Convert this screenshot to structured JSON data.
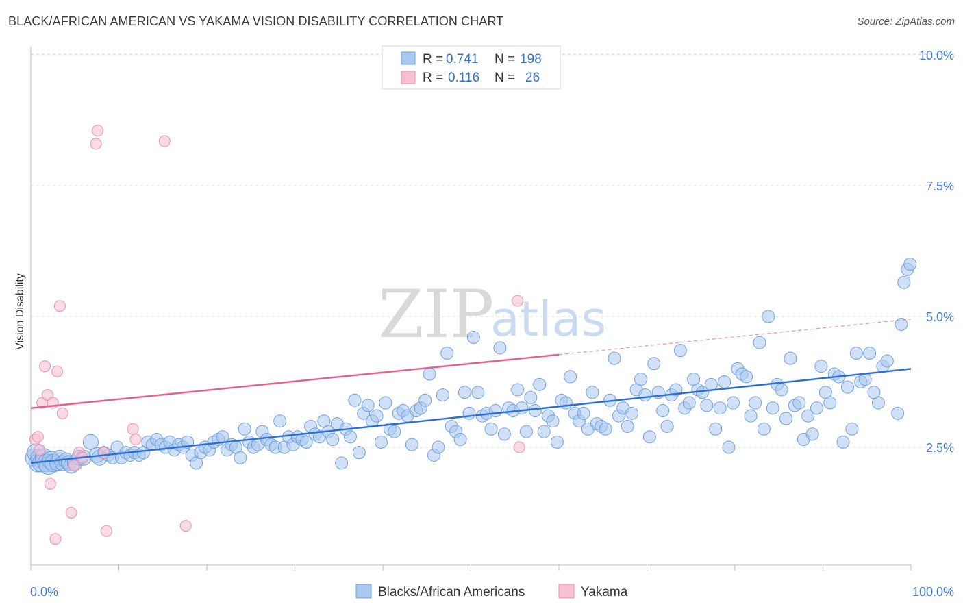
{
  "header": {
    "title": "BLACK/AFRICAN AMERICAN VS YAKAMA VISION DISABILITY CORRELATION CHART",
    "source": "Source: ZipAtlas.com"
  },
  "watermark": {
    "zip": "ZIP",
    "atlas": "atlas"
  },
  "colors": {
    "blue_fill": "#a9c8f0",
    "blue_stroke": "#6e9fe0",
    "blue_line": "#2f6fd1",
    "pink_fill": "#f6c2d3",
    "pink_stroke": "#ea8fae",
    "pink_line": "#e3628e",
    "axis_text": "#3f7bd0",
    "grid": "#dddddd"
  },
  "legend": {
    "rows": [
      {
        "r_label": "R =",
        "r_value": "0.741",
        "n_label": "N =",
        "n_value": "198"
      },
      {
        "r_label": "R =",
        "r_value": "0.116",
        "n_label": "N =",
        "n_value": "26"
      }
    ]
  },
  "bottom_legend": {
    "items": [
      {
        "label": "Blacks/African Americans"
      },
      {
        "label": "Yakama"
      }
    ]
  },
  "chart_data": {
    "type": "scatter",
    "ylabel": "Vision Disability",
    "xlabel": "",
    "xlim": [
      0,
      100
    ],
    "ylim": [
      0,
      10.5
    ],
    "x_tick_labels": [
      "0.0%",
      "100.0%"
    ],
    "y_ticks": [
      2.5,
      5.0,
      7.5,
      10.0
    ],
    "y_tick_labels": [
      "2.5%",
      "5.0%",
      "7.5%",
      "10.0%"
    ],
    "grid": "horizontal dashed",
    "series": [
      {
        "name": "Blacks/African Americans",
        "r": 0.741,
        "n": 198,
        "trend": {
          "x": [
            0,
            100
          ],
          "y": [
            2.2,
            4.0
          ],
          "dashed_after": null
        },
        "points": [
          [
            0.4,
            2.3
          ],
          [
            0.6,
            2.4
          ],
          [
            0.8,
            2.2
          ],
          [
            1.0,
            2.3
          ],
          [
            1.2,
            2.2
          ],
          [
            1.5,
            2.3
          ],
          [
            1.8,
            2.2
          ],
          [
            2.0,
            2.15
          ],
          [
            2.3,
            2.25
          ],
          [
            2.6,
            2.2
          ],
          [
            3.0,
            2.2
          ],
          [
            3.3,
            2.3
          ],
          [
            3.6,
            2.2
          ],
          [
            4.0,
            2.25
          ],
          [
            4.3,
            2.2
          ],
          [
            4.6,
            2.15
          ],
          [
            5.0,
            2.2
          ],
          [
            5.5,
            2.3
          ],
          [
            6.0,
            2.3
          ],
          [
            6.8,
            2.6
          ],
          [
            7.5,
            2.35
          ],
          [
            7.8,
            2.3
          ],
          [
            8.3,
            2.4
          ],
          [
            8.8,
            2.35
          ],
          [
            9.3,
            2.3
          ],
          [
            9.8,
            2.5
          ],
          [
            10.3,
            2.3
          ],
          [
            10.8,
            2.4
          ],
          [
            11.3,
            2.35
          ],
          [
            11.8,
            2.4
          ],
          [
            12.3,
            2.35
          ],
          [
            12.8,
            2.4
          ],
          [
            13.3,
            2.6
          ],
          [
            13.8,
            2.55
          ],
          [
            14.3,
            2.65
          ],
          [
            14.8,
            2.55
          ],
          [
            15.3,
            2.5
          ],
          [
            15.8,
            2.6
          ],
          [
            16.3,
            2.45
          ],
          [
            16.8,
            2.55
          ],
          [
            17.3,
            2.5
          ],
          [
            17.8,
            2.6
          ],
          [
            18.3,
            2.35
          ],
          [
            18.8,
            2.2
          ],
          [
            19.3,
            2.4
          ],
          [
            19.8,
            2.5
          ],
          [
            20.3,
            2.45
          ],
          [
            20.8,
            2.6
          ],
          [
            21.3,
            2.65
          ],
          [
            21.8,
            2.7
          ],
          [
            22.3,
            2.45
          ],
          [
            22.8,
            2.55
          ],
          [
            23.3,
            2.5
          ],
          [
            23.8,
            2.3
          ],
          [
            24.3,
            2.85
          ],
          [
            24.8,
            2.6
          ],
          [
            25.3,
            2.5
          ],
          [
            25.8,
            2.55
          ],
          [
            26.3,
            2.8
          ],
          [
            26.8,
            2.65
          ],
          [
            27.3,
            2.55
          ],
          [
            27.8,
            2.5
          ],
          [
            28.3,
            3.0
          ],
          [
            28.8,
            2.5
          ],
          [
            29.3,
            2.7
          ],
          [
            29.8,
            2.55
          ],
          [
            30.3,
            2.7
          ],
          [
            30.8,
            2.65
          ],
          [
            31.3,
            2.6
          ],
          [
            31.8,
            2.9
          ],
          [
            32.3,
            2.75
          ],
          [
            32.8,
            2.7
          ],
          [
            33.3,
            3.0
          ],
          [
            33.8,
            2.8
          ],
          [
            34.3,
            2.65
          ],
          [
            34.8,
            2.95
          ],
          [
            35.3,
            2.2
          ],
          [
            35.8,
            2.85
          ],
          [
            36.3,
            2.7
          ],
          [
            36.8,
            3.4
          ],
          [
            37.3,
            2.4
          ],
          [
            37.8,
            3.15
          ],
          [
            38.3,
            3.3
          ],
          [
            38.8,
            3.0
          ],
          [
            39.3,
            3.1
          ],
          [
            39.8,
            2.6
          ],
          [
            40.3,
            3.35
          ],
          [
            40.8,
            2.85
          ],
          [
            41.3,
            2.8
          ],
          [
            41.8,
            3.15
          ],
          [
            42.3,
            3.2
          ],
          [
            42.8,
            3.1
          ],
          [
            43.3,
            2.55
          ],
          [
            43.8,
            3.2
          ],
          [
            44.3,
            3.25
          ],
          [
            44.8,
            3.4
          ],
          [
            45.3,
            3.9
          ],
          [
            45.8,
            2.35
          ],
          [
            46.3,
            2.5
          ],
          [
            46.8,
            3.5
          ],
          [
            47.3,
            4.3
          ],
          [
            47.8,
            2.9
          ],
          [
            48.3,
            2.8
          ],
          [
            48.8,
            2.65
          ],
          [
            49.3,
            3.55
          ],
          [
            49.8,
            3.15
          ],
          [
            50.3,
            4.6
          ],
          [
            50.8,
            3.55
          ],
          [
            51.3,
            3.1
          ],
          [
            51.8,
            3.15
          ],
          [
            52.3,
            2.85
          ],
          [
            52.8,
            3.2
          ],
          [
            53.3,
            4.4
          ],
          [
            53.8,
            2.75
          ],
          [
            54.3,
            3.25
          ],
          [
            54.8,
            3.2
          ],
          [
            55.3,
            3.6
          ],
          [
            55.8,
            3.25
          ],
          [
            56.3,
            2.8
          ],
          [
            56.8,
            3.45
          ],
          [
            57.3,
            3.2
          ],
          [
            57.8,
            3.7
          ],
          [
            58.3,
            2.8
          ],
          [
            58.8,
            3.1
          ],
          [
            59.3,
            3.0
          ],
          [
            59.8,
            2.6
          ],
          [
            60.3,
            3.4
          ],
          [
            60.8,
            3.35
          ],
          [
            61.3,
            3.85
          ],
          [
            61.8,
            3.15
          ],
          [
            62.3,
            3.0
          ],
          [
            62.8,
            3.15
          ],
          [
            63.3,
            2.85
          ],
          [
            63.8,
            3.55
          ],
          [
            64.3,
            2.95
          ],
          [
            64.8,
            2.9
          ],
          [
            65.3,
            2.85
          ],
          [
            65.8,
            3.4
          ],
          [
            66.3,
            4.2
          ],
          [
            66.8,
            3.1
          ],
          [
            67.3,
            3.25
          ],
          [
            67.8,
            2.9
          ],
          [
            68.3,
            3.15
          ],
          [
            68.8,
            3.6
          ],
          [
            69.3,
            3.8
          ],
          [
            69.8,
            3.5
          ],
          [
            70.3,
            2.7
          ],
          [
            70.8,
            4.1
          ],
          [
            71.3,
            3.55
          ],
          [
            71.8,
            3.2
          ],
          [
            72.3,
            2.9
          ],
          [
            72.8,
            3.5
          ],
          [
            73.3,
            3.6
          ],
          [
            73.8,
            4.35
          ],
          [
            74.3,
            3.25
          ],
          [
            74.8,
            3.35
          ],
          [
            75.3,
            3.8
          ],
          [
            75.8,
            3.6
          ],
          [
            76.3,
            3.55
          ],
          [
            76.8,
            3.3
          ],
          [
            77.3,
            3.7
          ],
          [
            77.8,
            2.85
          ],
          [
            78.3,
            3.25
          ],
          [
            78.8,
            3.75
          ],
          [
            79.3,
            2.5
          ],
          [
            79.8,
            3.35
          ],
          [
            80.3,
            4.0
          ],
          [
            80.8,
            3.9
          ],
          [
            81.3,
            3.85
          ],
          [
            81.8,
            3.1
          ],
          [
            82.3,
            3.35
          ],
          [
            82.8,
            4.5
          ],
          [
            83.3,
            2.85
          ],
          [
            83.8,
            5.0
          ],
          [
            84.3,
            3.25
          ],
          [
            84.8,
            3.7
          ],
          [
            85.3,
            3.6
          ],
          [
            85.8,
            3.05
          ],
          [
            86.3,
            4.2
          ],
          [
            86.8,
            3.3
          ],
          [
            87.3,
            3.35
          ],
          [
            87.8,
            2.65
          ],
          [
            88.3,
            3.1
          ],
          [
            88.8,
            2.75
          ],
          [
            89.3,
            3.25
          ],
          [
            89.8,
            4.05
          ],
          [
            90.3,
            3.55
          ],
          [
            90.8,
            3.35
          ],
          [
            91.3,
            3.9
          ],
          [
            91.8,
            3.85
          ],
          [
            92.3,
            2.6
          ],
          [
            92.8,
            3.65
          ],
          [
            93.3,
            2.85
          ],
          [
            93.8,
            4.3
          ],
          [
            94.3,
            3.75
          ],
          [
            94.8,
            3.8
          ],
          [
            95.3,
            4.3
          ],
          [
            95.8,
            3.55
          ],
          [
            96.3,
            3.35
          ],
          [
            96.8,
            4.05
          ],
          [
            97.3,
            4.15
          ],
          [
            98.5,
            3.15
          ],
          [
            98.9,
            4.85
          ],
          [
            99.2,
            5.65
          ],
          [
            99.6,
            5.9
          ],
          [
            99.9,
            6.0
          ]
        ]
      },
      {
        "name": "Yakama",
        "r": 0.116,
        "n": 26,
        "trend": {
          "x": [
            0,
            100
          ],
          "y": [
            3.25,
            4.95
          ],
          "dashed_after": 60
        },
        "points": [
          [
            0.5,
            2.65
          ],
          [
            0.8,
            2.7
          ],
          [
            1.0,
            2.45
          ],
          [
            1.3,
            3.35
          ],
          [
            1.6,
            4.05
          ],
          [
            1.9,
            3.5
          ],
          [
            2.2,
            1.8
          ],
          [
            2.5,
            3.35
          ],
          [
            2.8,
            0.75
          ],
          [
            3.0,
            3.95
          ],
          [
            3.3,
            5.2
          ],
          [
            3.6,
            3.15
          ],
          [
            4.6,
            1.25
          ],
          [
            4.9,
            2.15
          ],
          [
            5.5,
            2.4
          ],
          [
            5.9,
            2.3
          ],
          [
            7.4,
            8.3
          ],
          [
            7.6,
            8.55
          ],
          [
            8.3,
            2.4
          ],
          [
            8.6,
            0.9
          ],
          [
            11.6,
            2.85
          ],
          [
            11.9,
            2.65
          ],
          [
            15.2,
            8.35
          ],
          [
            17.6,
            1.0
          ],
          [
            55.5,
            2.5
          ],
          [
            55.3,
            5.3
          ]
        ]
      }
    ]
  }
}
